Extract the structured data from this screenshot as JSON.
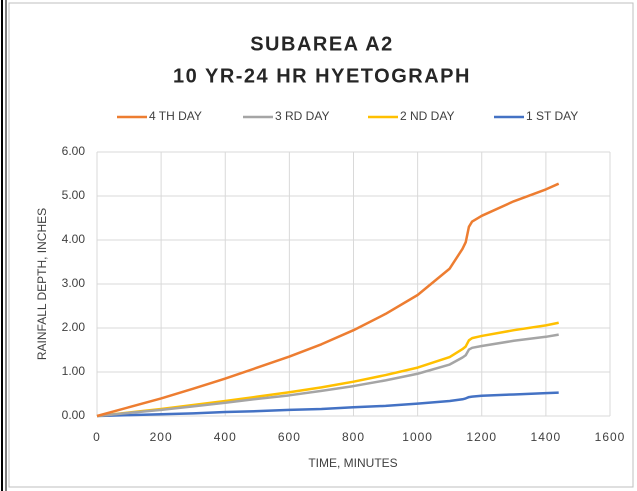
{
  "chart_data": {
    "type": "line",
    "title": [
      "SUBAREA A2",
      "10 YR-24 HR HYETOGRAPH"
    ],
    "x_label": "TIME, MINUTES",
    "y_label": "RAINFALL DEPTH, INCHES",
    "x": [
      0,
      100,
      200,
      300,
      400,
      500,
      600,
      700,
      800,
      900,
      1000,
      1100,
      1140,
      1150,
      1160,
      1170,
      1200,
      1300,
      1400,
      1440
    ],
    "series": [
      {
        "name": "4 TH DAY",
        "color": "#ed7d31",
        "values": [
          0,
          0.2,
          0.4,
          0.62,
          0.85,
          1.1,
          1.35,
          1.63,
          1.95,
          2.32,
          2.75,
          3.35,
          3.8,
          3.95,
          4.3,
          4.42,
          4.55,
          4.88,
          5.15,
          5.28
        ]
      },
      {
        "name": "3 RD DAY",
        "color": "#a5a5a5",
        "values": [
          0,
          0.07,
          0.14,
          0.22,
          0.3,
          0.39,
          0.47,
          0.57,
          0.68,
          0.81,
          0.96,
          1.17,
          1.33,
          1.38,
          1.51,
          1.55,
          1.59,
          1.71,
          1.8,
          1.85
        ]
      },
      {
        "name": "2 ND DAY",
        "color": "#ffc000",
        "values": [
          0,
          0.08,
          0.16,
          0.25,
          0.34,
          0.44,
          0.54,
          0.65,
          0.78,
          0.93,
          1.1,
          1.34,
          1.52,
          1.58,
          1.72,
          1.77,
          1.82,
          1.95,
          2.06,
          2.12
        ]
      },
      {
        "name": "1 ST DAY",
        "color": "#4472c4",
        "values": [
          0,
          0.02,
          0.04,
          0.06,
          0.09,
          0.11,
          0.14,
          0.16,
          0.2,
          0.23,
          0.28,
          0.34,
          0.38,
          0.4,
          0.43,
          0.44,
          0.46,
          0.49,
          0.52,
          0.53
        ]
      }
    ],
    "xlim": [
      0,
      1600
    ],
    "xticks": [
      0,
      200,
      400,
      600,
      800,
      1000,
      1200,
      1400,
      1600
    ],
    "ylim": [
      0,
      6
    ],
    "yticks": [
      {
        "value": 0,
        "label": "0.00"
      },
      {
        "value": 1,
        "label": "1.00"
      },
      {
        "value": 2,
        "label": "2.00"
      },
      {
        "value": 3,
        "label": "3.00"
      },
      {
        "value": 4,
        "label": "4.00"
      },
      {
        "value": 5,
        "label": "5.00"
      },
      {
        "value": 6,
        "label": "6.00"
      }
    ],
    "grid": true,
    "legend": "top"
  }
}
